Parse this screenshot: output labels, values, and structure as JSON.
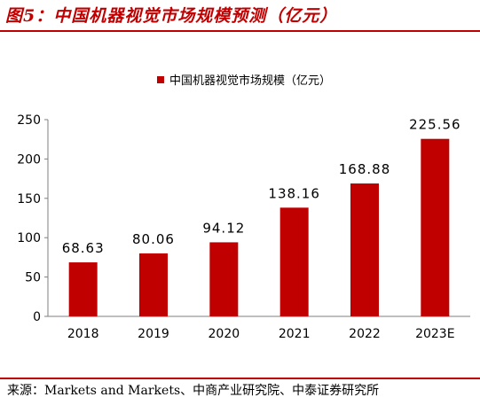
{
  "figure": {
    "title": "图5：中国机器视觉市场规模预测（亿元）",
    "source": "来源：Markets and Markets、中商产业研究院、中泰证券研究所"
  },
  "colors": {
    "accent": "#C00000",
    "bar": "#C00000"
  },
  "chart_data": {
    "type": "bar",
    "categories": [
      "2018",
      "2019",
      "2020",
      "2021",
      "2022",
      "2023E"
    ],
    "series": [
      {
        "name": "中国机器视觉市场规模（亿元）",
        "values": [
          68.63,
          80.06,
          94.12,
          138.16,
          168.88,
          225.56
        ],
        "labels": [
          "68.63",
          "80.06",
          "94.12",
          "138.16",
          "168.88",
          "225.56"
        ]
      }
    ],
    "yticks": [
      "0",
      "50",
      "100",
      "150",
      "200",
      "250"
    ],
    "ylim": [
      0,
      250
    ],
    "grid": false,
    "legend": "top-center",
    "xlabel": "",
    "ylabel": ""
  }
}
